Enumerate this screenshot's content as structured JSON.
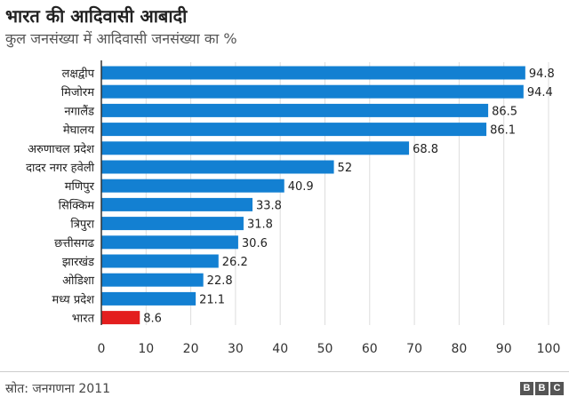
{
  "chart_data": {
    "type": "bar",
    "orientation": "horizontal",
    "title": "भारत की आदिवासी आबादी",
    "subtitle": "कुल जनसंख्या में आदिवासी जनसंख्या का %",
    "categories": [
      "लक्षद्वीप",
      "मिजोरम",
      "नगालैंड",
      "मेघालय",
      "अरुणाचल प्रदेश",
      "दादर नगर हवेली",
      "मणिपुर",
      "सिक्किम",
      "त्रिपुरा",
      "छत्तीसगढ",
      "झारखंड",
      "ओडिशा",
      "मध्य प्रदेश",
      "भारत"
    ],
    "values": [
      94.8,
      94.4,
      86.5,
      86.1,
      68.8,
      52,
      40.9,
      33.8,
      31.8,
      30.6,
      26.2,
      22.8,
      21.1,
      8.6
    ],
    "value_labels": [
      "94.8",
      "94.4",
      "86.5",
      "86.1",
      "68.8",
      "52",
      "40.9",
      "33.8",
      "31.8",
      "30.6",
      "26.2",
      "22.8",
      "21.1",
      "8.6"
    ],
    "xlim": [
      0,
      100
    ],
    "xticks": [
      "0",
      "10",
      "20",
      "30",
      "40",
      "50",
      "60",
      "70",
      "80",
      "90",
      "100"
    ],
    "grid": true,
    "colors": {
      "bar": "#1380d2",
      "highlight": "#e31e1e",
      "grid": "#dddddd"
    },
    "highlight_index": 13
  },
  "footer": {
    "source": "स्रोत: जनगणना 2011",
    "logo_letters": [
      "B",
      "B",
      "C"
    ]
  }
}
